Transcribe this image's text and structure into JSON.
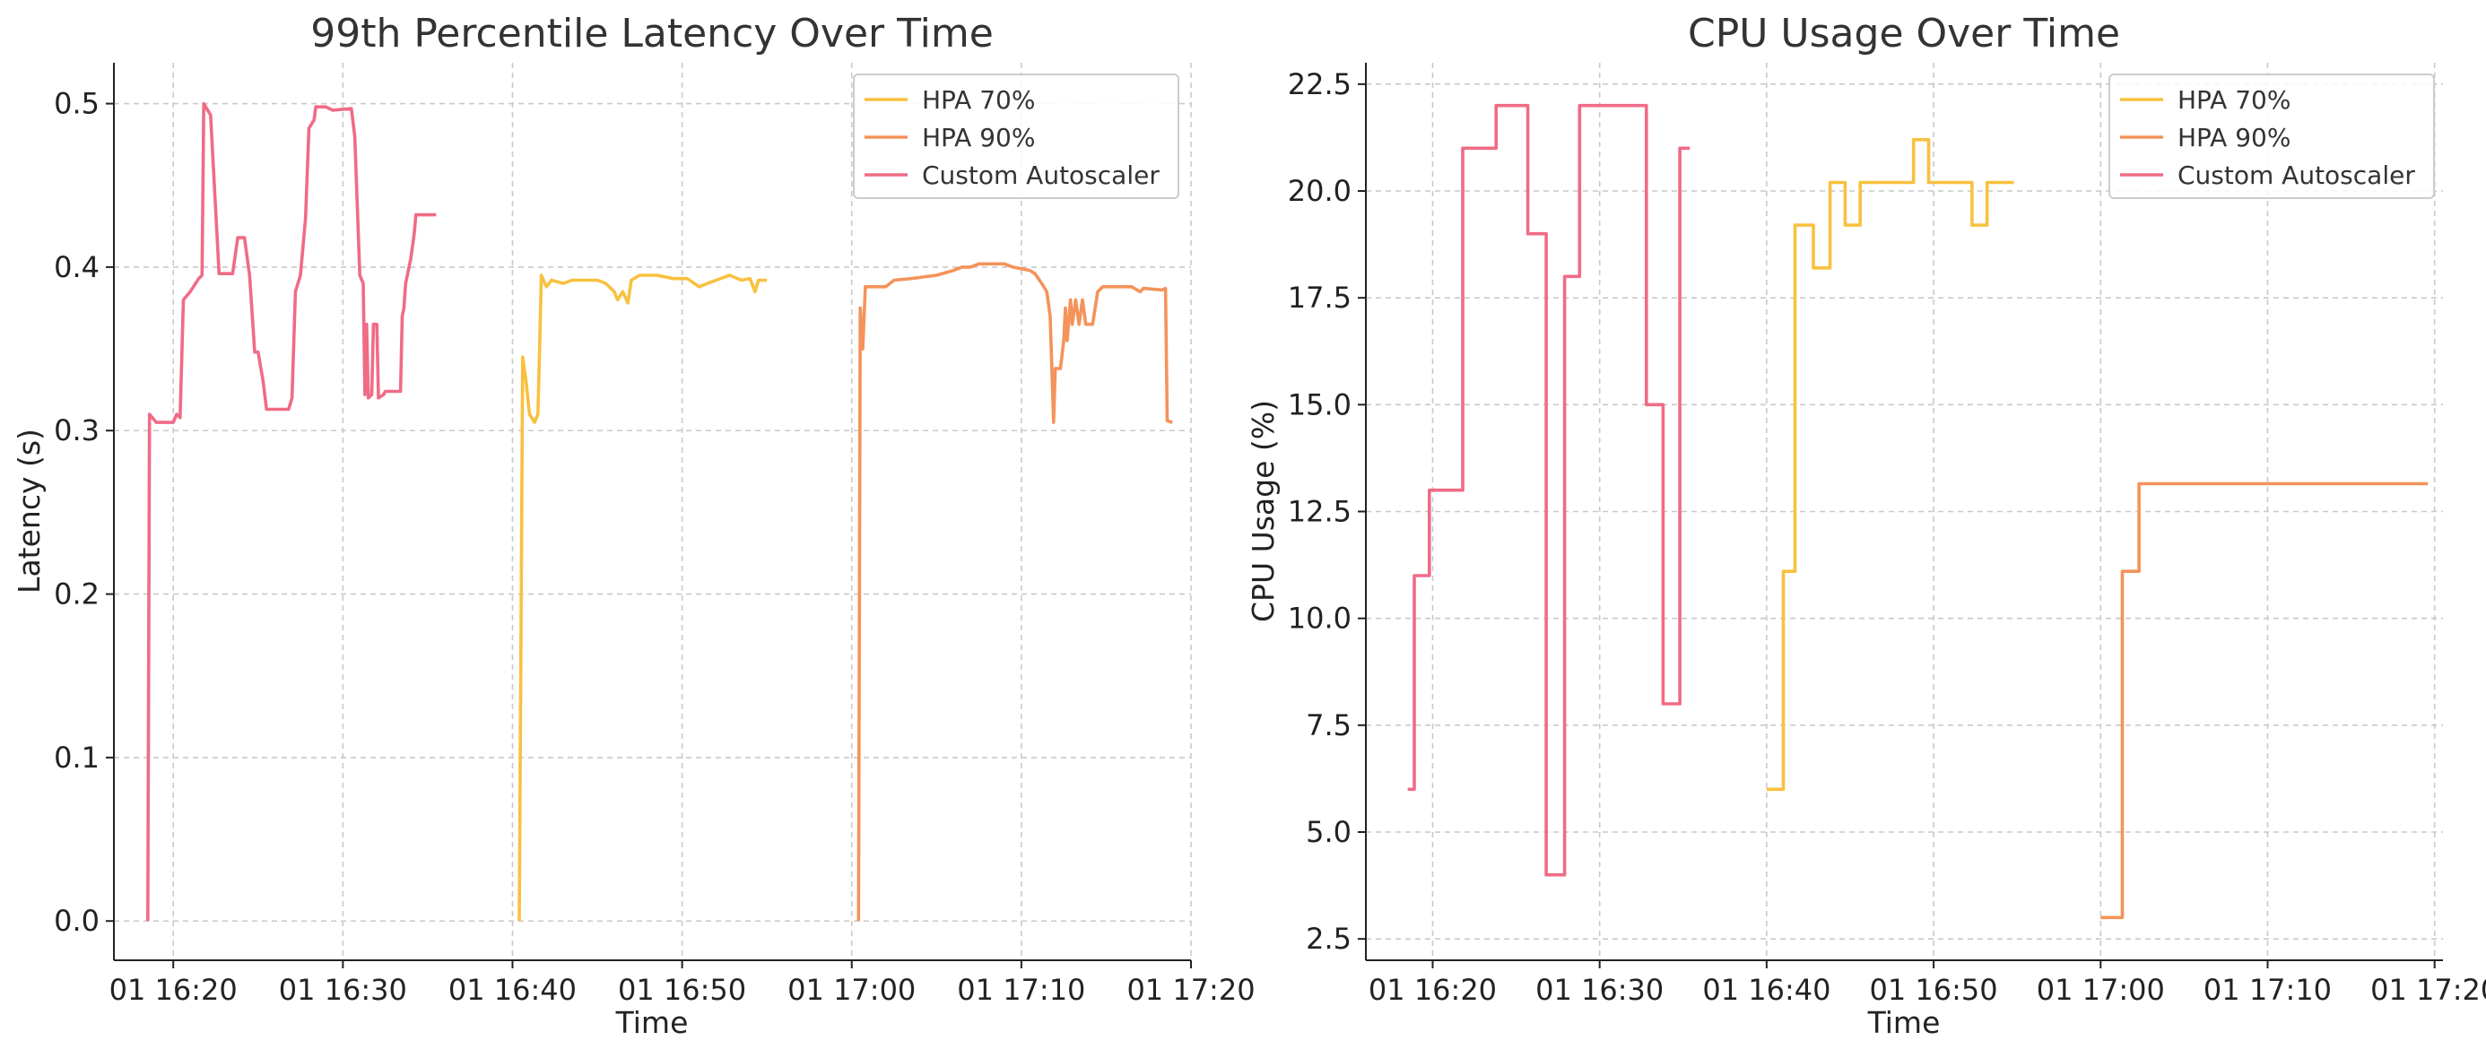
{
  "chart_data": [
    {
      "type": "line",
      "title": "99th Percentile Latency Over Time",
      "xlabel": "Time",
      "ylabel": "Latency (s)",
      "xlim": [
        16.5,
        80
      ],
      "ylim": [
        -0.024,
        0.525
      ],
      "grid": true,
      "legend": "top-right",
      "x_ticks": [
        {
          "value": 20,
          "label": "01 16:20"
        },
        {
          "value": 30,
          "label": "01 16:30"
        },
        {
          "value": 40,
          "label": "01 16:40"
        },
        {
          "value": 50,
          "label": "01 16:50"
        },
        {
          "value": 60,
          "label": "01 17:00"
        },
        {
          "value": 70,
          "label": "01 17:10"
        },
        {
          "value": 80,
          "label": "01 17:20"
        }
      ],
      "y_ticks": [
        {
          "value": 0.0,
          "label": "0.0"
        },
        {
          "value": 0.1,
          "label": "0.1"
        },
        {
          "value": 0.2,
          "label": "0.2"
        },
        {
          "value": 0.3,
          "label": "0.3"
        },
        {
          "value": 0.4,
          "label": "0.4"
        },
        {
          "value": 0.5,
          "label": "0.5"
        }
      ],
      "series": [
        {
          "name": "HPA 70%",
          "color": "#f8c13f",
          "points": [
            [
              40.4,
              0.0
            ],
            [
              40.6,
              0.345
            ],
            [
              40.8,
              0.33
            ],
            [
              41.0,
              0.31
            ],
            [
              41.3,
              0.305
            ],
            [
              41.5,
              0.31
            ],
            [
              41.6,
              0.35
            ],
            [
              41.7,
              0.395
            ],
            [
              42.0,
              0.388
            ],
            [
              42.3,
              0.392
            ],
            [
              43.0,
              0.39
            ],
            [
              43.5,
              0.392
            ],
            [
              44.0,
              0.392
            ],
            [
              45.0,
              0.392
            ],
            [
              45.5,
              0.39
            ],
            [
              46.0,
              0.385
            ],
            [
              46.2,
              0.38
            ],
            [
              46.5,
              0.385
            ],
            [
              46.8,
              0.378
            ],
            [
              47.0,
              0.392
            ],
            [
              47.5,
              0.395
            ],
            [
              48.5,
              0.395
            ],
            [
              49.5,
              0.393
            ],
            [
              50.3,
              0.393
            ],
            [
              51.0,
              0.388
            ],
            [
              51.5,
              0.39
            ],
            [
              52.0,
              0.392
            ],
            [
              52.8,
              0.395
            ],
            [
              53.5,
              0.392
            ],
            [
              54.0,
              0.393
            ],
            [
              54.3,
              0.385
            ],
            [
              54.5,
              0.392
            ],
            [
              55.0,
              0.392
            ]
          ]
        },
        {
          "name": "HPA 90%",
          "color": "#f4935a",
          "points": [
            [
              60.4,
              0.0
            ],
            [
              60.5,
              0.375
            ],
            [
              60.65,
              0.35
            ],
            [
              60.8,
              0.388
            ],
            [
              62.0,
              0.388
            ],
            [
              62.5,
              0.392
            ],
            [
              63.5,
              0.393
            ],
            [
              65.0,
              0.395
            ],
            [
              66.0,
              0.398
            ],
            [
              66.5,
              0.4
            ],
            [
              67.0,
              0.4
            ],
            [
              67.5,
              0.402
            ],
            [
              69.0,
              0.402
            ],
            [
              69.5,
              0.4
            ],
            [
              70.5,
              0.398
            ],
            [
              70.8,
              0.396
            ],
            [
              71.2,
              0.39
            ],
            [
              71.5,
              0.385
            ],
            [
              71.7,
              0.37
            ],
            [
              71.9,
              0.305
            ],
            [
              72.0,
              0.338
            ],
            [
              72.3,
              0.338
            ],
            [
              72.5,
              0.355
            ],
            [
              72.6,
              0.375
            ],
            [
              72.7,
              0.355
            ],
            [
              72.9,
              0.38
            ],
            [
              73.0,
              0.365
            ],
            [
              73.2,
              0.38
            ],
            [
              73.4,
              0.365
            ],
            [
              73.6,
              0.38
            ],
            [
              73.8,
              0.365
            ],
            [
              74.2,
              0.365
            ],
            [
              74.5,
              0.385
            ],
            [
              74.8,
              0.388
            ],
            [
              76.5,
              0.388
            ],
            [
              77.0,
              0.385
            ],
            [
              77.2,
              0.387
            ],
            [
              78.3,
              0.386
            ],
            [
              78.5,
              0.387
            ],
            [
              78.6,
              0.306
            ],
            [
              78.9,
              0.305
            ]
          ]
        },
        {
          "name": "Custom Autoscaler",
          "color": "#f06b86",
          "points": [
            [
              18.5,
              0.0
            ],
            [
              18.6,
              0.31
            ],
            [
              19.0,
              0.305
            ],
            [
              20.0,
              0.305
            ],
            [
              20.2,
              0.31
            ],
            [
              20.4,
              0.308
            ],
            [
              20.6,
              0.38
            ],
            [
              21.0,
              0.385
            ],
            [
              21.5,
              0.393
            ],
            [
              21.7,
              0.395
            ],
            [
              21.8,
              0.5
            ],
            [
              22.2,
              0.493
            ],
            [
              22.7,
              0.396
            ],
            [
              23.5,
              0.396
            ],
            [
              23.8,
              0.418
            ],
            [
              24.2,
              0.418
            ],
            [
              24.5,
              0.395
            ],
            [
              24.8,
              0.348
            ],
            [
              25.0,
              0.348
            ],
            [
              25.3,
              0.33
            ],
            [
              25.5,
              0.313
            ],
            [
              26.8,
              0.313
            ],
            [
              27.0,
              0.32
            ],
            [
              27.2,
              0.385
            ],
            [
              27.5,
              0.395
            ],
            [
              27.8,
              0.43
            ],
            [
              28.0,
              0.485
            ],
            [
              28.3,
              0.49
            ],
            [
              28.4,
              0.498
            ],
            [
              29.0,
              0.498
            ],
            [
              29.4,
              0.496
            ],
            [
              30.5,
              0.497
            ],
            [
              30.7,
              0.48
            ],
            [
              31.0,
              0.395
            ],
            [
              31.2,
              0.39
            ],
            [
              31.3,
              0.322
            ],
            [
              31.4,
              0.365
            ],
            [
              31.5,
              0.32
            ],
            [
              31.7,
              0.322
            ],
            [
              31.8,
              0.365
            ],
            [
              32.0,
              0.365
            ],
            [
              32.1,
              0.32
            ],
            [
              32.4,
              0.322
            ],
            [
              32.5,
              0.324
            ],
            [
              33.4,
              0.324
            ],
            [
              33.5,
              0.37
            ],
            [
              33.6,
              0.375
            ],
            [
              33.7,
              0.39
            ],
            [
              33.9,
              0.4
            ],
            [
              34.0,
              0.405
            ],
            [
              34.2,
              0.42
            ],
            [
              34.3,
              0.432
            ],
            [
              35.5,
              0.432
            ]
          ]
        }
      ]
    },
    {
      "type": "line",
      "title": "CPU Usage Over Time",
      "xlabel": "Time",
      "ylabel": "CPU Usage (%)",
      "xlim": [
        16.0,
        80.5
      ],
      "ylim": [
        2.0,
        23.0
      ],
      "grid": true,
      "legend": "top-right",
      "x_ticks": [
        {
          "value": 20,
          "label": "01 16:20"
        },
        {
          "value": 30,
          "label": "01 16:30"
        },
        {
          "value": 40,
          "label": "01 16:40"
        },
        {
          "value": 50,
          "label": "01 16:50"
        },
        {
          "value": 60,
          "label": "01 17:00"
        },
        {
          "value": 70,
          "label": "01 17:10"
        },
        {
          "value": 80,
          "label": "01 17:20"
        }
      ],
      "y_ticks": [
        {
          "value": 2.5,
          "label": "2.5"
        },
        {
          "value": 5.0,
          "label": "5.0"
        },
        {
          "value": 7.5,
          "label": "7.5"
        },
        {
          "value": 10.0,
          "label": "10.0"
        },
        {
          "value": 12.5,
          "label": "12.5"
        },
        {
          "value": 15.0,
          "label": "15.0"
        },
        {
          "value": 17.5,
          "label": "17.5"
        },
        {
          "value": 20.0,
          "label": "20.0"
        },
        {
          "value": 22.5,
          "label": "22.5"
        }
      ],
      "series": [
        {
          "name": "HPA 70%",
          "color": "#f8c13f",
          "points": [
            [
              40.0,
              6.0
            ],
            [
              41.0,
              6.0
            ],
            [
              41.0,
              11.1
            ],
            [
              41.7,
              11.1
            ],
            [
              41.7,
              19.2
            ],
            [
              42.8,
              19.2
            ],
            [
              42.8,
              18.2
            ],
            [
              43.8,
              18.2
            ],
            [
              43.8,
              20.2
            ],
            [
              44.7,
              20.2
            ],
            [
              44.7,
              19.2
            ],
            [
              45.6,
              19.2
            ],
            [
              45.6,
              20.2
            ],
            [
              48.8,
              20.2
            ],
            [
              48.8,
              21.2
            ],
            [
              49.7,
              21.2
            ],
            [
              49.7,
              20.2
            ],
            [
              52.3,
              20.2
            ],
            [
              52.3,
              19.2
            ],
            [
              53.2,
              19.2
            ],
            [
              53.2,
              20.2
            ],
            [
              54.8,
              20.2
            ]
          ]
        },
        {
          "name": "HPA 90%",
          "color": "#f4935a",
          "points": [
            [
              60.0,
              3.0
            ],
            [
              61.3,
              3.0
            ],
            [
              61.3,
              11.1
            ],
            [
              62.3,
              11.1
            ],
            [
              62.3,
              13.15
            ],
            [
              79.6,
              13.15
            ]
          ]
        },
        {
          "name": "Custom Autoscaler",
          "color": "#f06b86",
          "points": [
            [
              18.5,
              6.0
            ],
            [
              18.9,
              6.0
            ],
            [
              18.9,
              11.0
            ],
            [
              19.8,
              11.0
            ],
            [
              19.8,
              13.0
            ],
            [
              21.8,
              13.0
            ],
            [
              21.8,
              21.0
            ],
            [
              23.8,
              21.0
            ],
            [
              23.8,
              22.0
            ],
            [
              25.7,
              22.0
            ],
            [
              25.7,
              19.0
            ],
            [
              26.8,
              19.0
            ],
            [
              26.8,
              4.0
            ],
            [
              27.9,
              4.0
            ],
            [
              27.9,
              18.0
            ],
            [
              28.8,
              18.0
            ],
            [
              28.8,
              22.0
            ],
            [
              32.8,
              22.0
            ],
            [
              32.8,
              15.0
            ],
            [
              33.8,
              15.0
            ],
            [
              33.8,
              8.0
            ],
            [
              34.8,
              8.0
            ],
            [
              34.8,
              21.0
            ],
            [
              35.4,
              21.0
            ]
          ]
        }
      ]
    }
  ]
}
